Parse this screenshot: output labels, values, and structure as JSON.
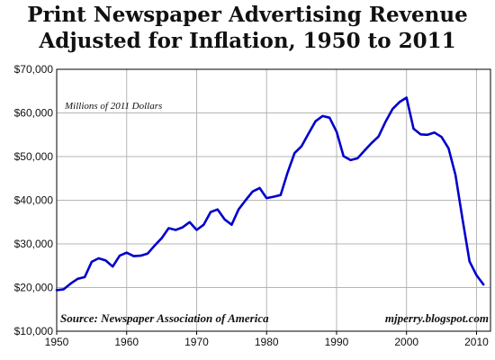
{
  "title_line1": "Print Newspaper Advertising Revenue",
  "title_line2": "Adjusted for Inflation, 1950 to 2011",
  "chart_data": {
    "type": "line",
    "title": "Print Newspaper Advertising Revenue Adjusted for Inflation, 1950 to 2011",
    "units_note": "Millions of 2011 Dollars",
    "source": "Source: Newspaper Association of America",
    "credit": "mjperry.blogspot.com",
    "xlabel": "",
    "ylabel": "",
    "xlim": [
      1950,
      2012
    ],
    "ylim": [
      10000,
      70000
    ],
    "x_ticks": [
      1950,
      1960,
      1970,
      1980,
      1990,
      2000,
      2010
    ],
    "y_ticks": [
      10000,
      20000,
      30000,
      40000,
      50000,
      60000,
      70000
    ],
    "y_tick_labels": [
      "$10,000",
      "$20,000",
      "$30,000",
      "$40,000",
      "$50,000",
      "$60,000",
      "$70,000"
    ],
    "grid": true,
    "line_color": "#0000cc",
    "series": [
      {
        "x": [
          1950,
          1951,
          1952,
          1953,
          1954,
          1955,
          1956,
          1957,
          1958,
          1959,
          1960,
          1961,
          1962,
          1963,
          1964,
          1965,
          1966,
          1967,
          1968,
          1969,
          1970,
          1971,
          1972,
          1973,
          1974,
          1975,
          1976,
          1977,
          1978,
          1979,
          1980,
          1981,
          1982,
          1983,
          1984,
          1985,
          1986,
          1987,
          1988,
          1989,
          1990,
          1991,
          1992,
          1993,
          1994,
          1995,
          1996,
          1997,
          1998,
          1999,
          2000,
          2001,
          2002,
          2003,
          2004,
          2005,
          2006,
          2007,
          2008,
          2009,
          2010,
          2011
        ],
        "y": [
          19400,
          19600,
          20900,
          22000,
          22400,
          25900,
          26700,
          26200,
          24800,
          27300,
          28000,
          27200,
          27300,
          27800,
          29600,
          31300,
          33600,
          33200,
          33800,
          35000,
          33200,
          34400,
          37300,
          37900,
          35600,
          34400,
          37900,
          40000,
          42000,
          42800,
          40500,
          40800,
          41200,
          46300,
          50800,
          52400,
          55300,
          58100,
          59300,
          58900,
          55700,
          50100,
          49200,
          49600,
          51400,
          53100,
          54600,
          58000,
          60900,
          62500,
          63500,
          56400,
          55100,
          55000,
          55500,
          54500,
          51900,
          45800,
          35700,
          26000,
          22800,
          20700
        ]
      }
    ]
  }
}
